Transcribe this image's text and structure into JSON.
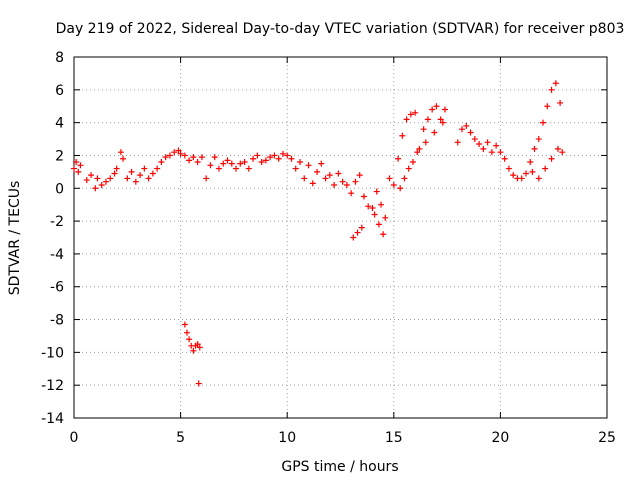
{
  "chart_data": {
    "type": "scatter",
    "title": "Day 219 of 2022, Sidereal Day-to-day VTEC variation (SDTVAR) for receiver p803",
    "xlabel": "GPS time / hours",
    "ylabel": "SDTVAR / TECUs",
    "xlim": [
      0,
      25
    ],
    "ylim": [
      -14,
      8
    ],
    "xticks": [
      0,
      5,
      10,
      15,
      20,
      25
    ],
    "yticks": [
      -14,
      -12,
      -10,
      -8,
      -6,
      -4,
      -2,
      0,
      2,
      4,
      6,
      8
    ],
    "grid": true,
    "marker": "plus",
    "color": "#ff0000",
    "series": [
      {
        "name": "SDTVAR",
        "x": [
          0.0,
          0.1,
          0.2,
          0.3,
          0.6,
          0.8,
          1.0,
          1.1,
          1.3,
          1.5,
          1.7,
          1.9,
          2.0,
          2.2,
          2.3,
          2.5,
          2.7,
          2.9,
          3.1,
          3.3,
          3.5,
          3.7,
          3.9,
          4.1,
          4.3,
          4.5,
          4.7,
          4.9,
          5.0,
          5.2,
          5.4,
          5.6,
          5.8,
          6.0,
          6.2,
          6.4,
          6.6,
          6.8,
          7.0,
          7.2,
          7.4,
          7.6,
          7.8,
          8.0,
          8.2,
          8.4,
          8.6,
          8.8,
          9.0,
          9.2,
          9.4,
          9.6,
          9.8,
          10.0,
          10.2,
          10.4,
          10.6,
          10.8,
          11.0,
          11.2,
          11.4,
          11.6,
          11.8,
          12.0,
          12.2,
          12.4,
          12.6,
          12.8,
          13.0,
          13.2,
          13.4,
          13.6,
          13.8,
          14.0,
          14.2,
          14.4,
          14.6,
          14.8,
          15.0,
          15.2,
          15.4,
          15.6,
          15.8,
          16.0,
          16.2,
          16.4,
          16.6,
          16.8,
          17.0,
          17.2,
          17.4,
          18.0,
          18.2,
          18.4,
          18.6,
          18.8,
          19.0,
          19.2,
          19.4,
          19.6,
          19.8,
          20.0,
          20.2,
          20.4,
          20.6,
          20.8,
          21.0,
          21.2,
          21.4,
          21.6,
          21.8,
          22.0,
          22.2,
          22.4,
          22.6,
          22.8,
          5.2,
          5.3,
          5.4,
          5.5,
          5.6,
          5.7,
          5.8,
          5.9,
          5.85,
          14.1,
          14.3,
          14.5,
          13.1,
          13.3,
          13.5,
          15.3,
          15.5,
          15.7,
          15.9,
          16.1,
          16.5,
          16.9,
          17.3,
          21.5,
          21.8,
          22.1,
          22.4,
          22.7,
          22.9
        ],
        "y": [
          1.2,
          1.6,
          1.0,
          1.4,
          0.5,
          0.8,
          0.0,
          0.6,
          0.2,
          0.4,
          0.6,
          0.9,
          1.2,
          2.2,
          1.8,
          0.6,
          1.0,
          0.4,
          0.8,
          1.2,
          0.6,
          0.9,
          1.2,
          1.6,
          1.9,
          2.0,
          2.2,
          2.3,
          2.1,
          2.0,
          1.7,
          1.9,
          1.6,
          1.9,
          0.6,
          1.4,
          1.9,
          1.2,
          1.5,
          1.7,
          1.5,
          1.2,
          1.5,
          1.6,
          1.2,
          1.8,
          2.0,
          1.6,
          1.7,
          1.9,
          2.0,
          1.8,
          2.1,
          2.0,
          1.8,
          1.2,
          1.6,
          0.6,
          1.4,
          0.3,
          1.0,
          1.5,
          0.6,
          0.8,
          0.2,
          0.9,
          0.4,
          0.2,
          -0.3,
          0.4,
          0.8,
          -0.5,
          -1.1,
          -1.2,
          -0.2,
          -1.0,
          -1.8,
          0.6,
          0.2,
          1.8,
          3.2,
          4.2,
          4.5,
          4.6,
          2.4,
          3.6,
          4.2,
          4.8,
          5.0,
          4.2,
          4.8,
          2.8,
          3.6,
          3.8,
          3.4,
          3.0,
          2.7,
          2.4,
          2.8,
          2.2,
          2.6,
          2.2,
          1.8,
          1.2,
          0.8,
          0.6,
          0.6,
          0.9,
          1.6,
          2.4,
          3.0,
          4.0,
          5.0,
          6.0,
          6.4,
          5.2,
          -8.3,
          -8.8,
          -9.2,
          -9.6,
          -9.9,
          -9.6,
          -9.5,
          -9.7,
          -11.9,
          -1.6,
          -2.2,
          -2.8,
          -3.0,
          -2.7,
          -2.4,
          0.0,
          0.6,
          1.2,
          1.6,
          2.2,
          2.8,
          3.4,
          4.0,
          1.0,
          0.6,
          1.2,
          1.8,
          2.4,
          2.2
        ]
      }
    ]
  }
}
